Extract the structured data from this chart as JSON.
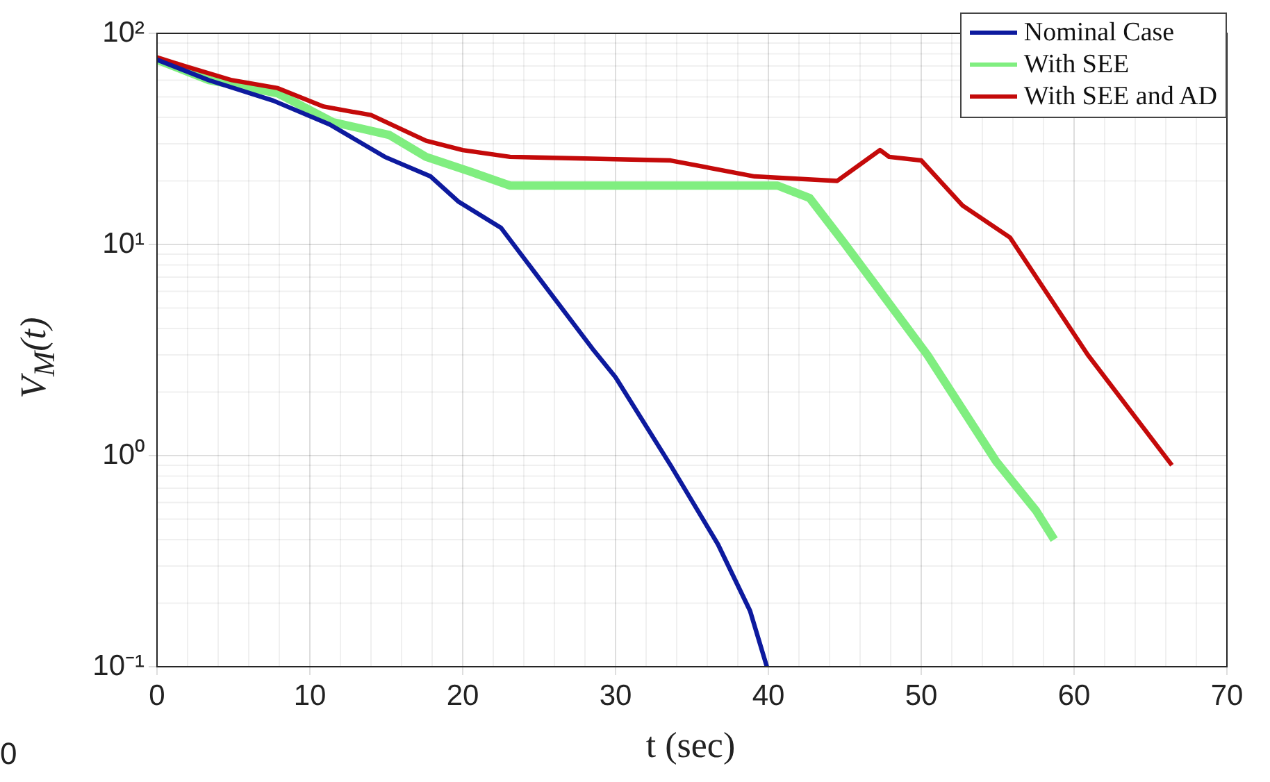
{
  "chart_data": {
    "type": "line",
    "xlabel": "t (sec)",
    "ylabel": "V$_{M}$(t)",
    "xlim": [
      0,
      70
    ],
    "xticks": [
      0,
      10,
      20,
      30,
      40,
      50,
      60,
      70
    ],
    "ylim": [
      0.1,
      100
    ],
    "yticks": [
      {
        "value": 0.1,
        "label": "10⁻¹"
      },
      {
        "value": 1,
        "label": "10⁰"
      },
      {
        "value": 10,
        "label": "10¹"
      },
      {
        "value": 100,
        "label": "10²"
      }
    ],
    "log": "y",
    "grid": true,
    "legend": "top right",
    "marker": "none",
    "line_style": "solid",
    "annotations": [
      "0"
    ],
    "series": [
      {
        "name": "Nominal Case",
        "color": "#0d1a9e",
        "x": [
          0,
          3.4,
          7.6,
          11.3,
          14.9,
          17.9,
          19.7,
          22.5,
          28.5,
          30,
          33.6,
          36.7,
          38.8,
          39.9
        ],
        "values": [
          75,
          60,
          48,
          37,
          26,
          21,
          16,
          12,
          3.2,
          2.35,
          0.9,
          0.38,
          0.184,
          0.1
        ]
      },
      {
        "name": "With SEE",
        "color": "#80ee80",
        "x": [
          0,
          3.4,
          7.9,
          11.5,
          15.2,
          17.6,
          20.6,
          23.1,
          40.6,
          42.7,
          44.9,
          50.4,
          54.9,
          57.5,
          58.7
        ],
        "values": [
          75,
          60,
          52,
          38,
          33,
          26,
          22,
          19,
          19,
          16.6,
          10.3,
          3.0,
          0.94,
          0.55,
          0.4
        ]
      },
      {
        "name": "With SEE and AD",
        "color": "#c40a0a",
        "x": [
          0,
          1.8,
          4.9,
          7.9,
          10.9,
          14,
          17.6,
          20,
          23.1,
          33.6,
          39.1,
          44.5,
          47.3,
          47.9,
          50,
          52.7,
          55.8,
          60.9,
          66.4
        ],
        "values": [
          77,
          70,
          60,
          55,
          45,
          41,
          31,
          28,
          26,
          25,
          21,
          20,
          28,
          26,
          25,
          15.3,
          10.8,
          3.0,
          0.9
        ]
      }
    ]
  }
}
